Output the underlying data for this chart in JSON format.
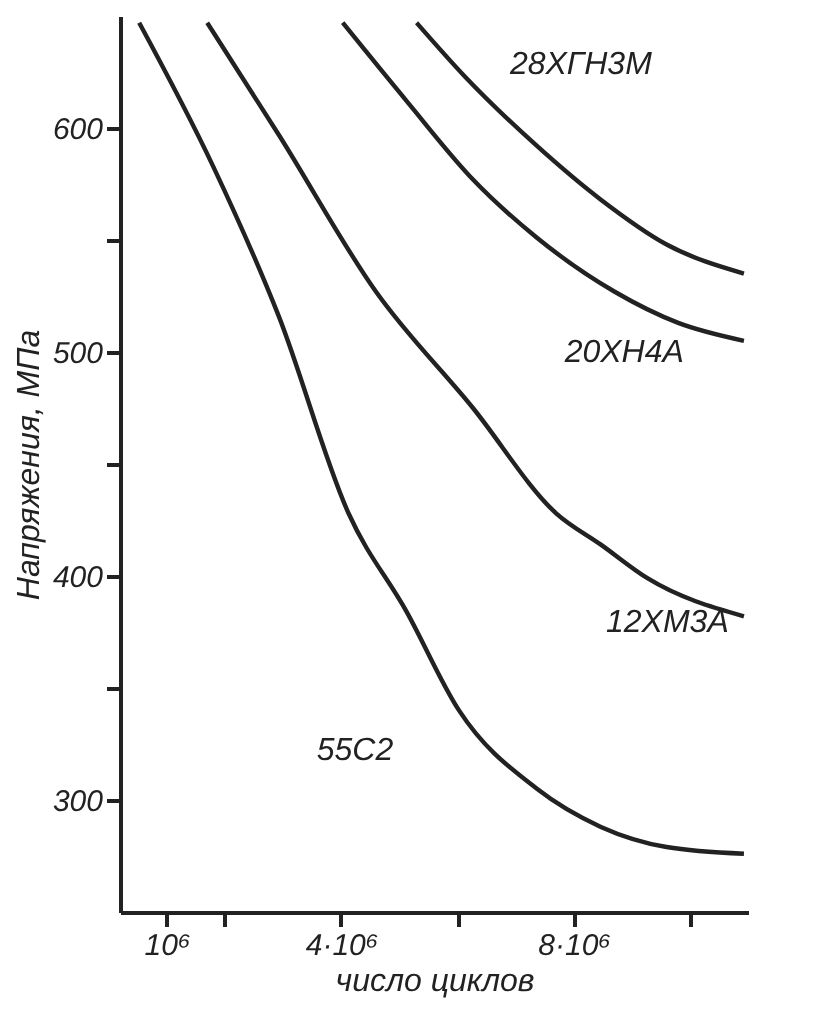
{
  "chart_data": {
    "type": "line",
    "xlabel": "число циклов",
    "ylabel": "Напряжения, МПа",
    "xlim": [
      200000,
      11000000
    ],
    "ylim": [
      250,
      650
    ],
    "xticks": [
      {
        "value": 1000000,
        "label": "10⁶"
      },
      {
        "value": 2000000,
        "label": null
      },
      {
        "value": 4000000,
        "label": "4·10⁶"
      },
      {
        "value": 6000000,
        "label": null
      },
      {
        "value": 8000000,
        "label": "8·10⁶"
      },
      {
        "value": 10000000,
        "label": null
      }
    ],
    "yticks": [
      300,
      {
        "value": 350,
        "label": null
      },
      400,
      {
        "value": 450,
        "label": null
      },
      500,
      {
        "value": 550,
        "label": null
      },
      600
    ],
    "grid": false,
    "marker": "none",
    "line_style": "solid",
    "series": [
      {
        "name": "55С2",
        "color": "#222222",
        "x": [
          530000,
          1800000,
          2930000,
          4130000,
          5130000,
          6030000,
          7370000,
          8470000,
          9600000,
          10930000
        ],
        "values": [
          647,
          583,
          516,
          428,
          384,
          340,
          305,
          288,
          279,
          276
        ]
      },
      {
        "name": "12ХМ3А",
        "color": "#222222",
        "x": [
          1700000,
          2930000,
          4600000,
          6270000,
          7700000,
          8470000,
          9270000,
          10930000
        ],
        "values": [
          647,
          597,
          527,
          475,
          428,
          414,
          399,
          382
        ]
      },
      {
        "name": "20ХН4А",
        "color": "#222222",
        "x": [
          4030000,
          5130000,
          6270000,
          7370000,
          8700000,
          9800000,
          10930000
        ],
        "values": [
          647,
          612,
          577,
          551,
          527,
          513,
          505
        ]
      },
      {
        "name": "28ХГН3М",
        "color": "#222222",
        "x": [
          5300000,
          6130000,
          7370000,
          8470000,
          9600000,
          10930000
        ],
        "values": [
          647,
          623,
          592,
          568,
          548,
          535
        ]
      }
    ]
  }
}
